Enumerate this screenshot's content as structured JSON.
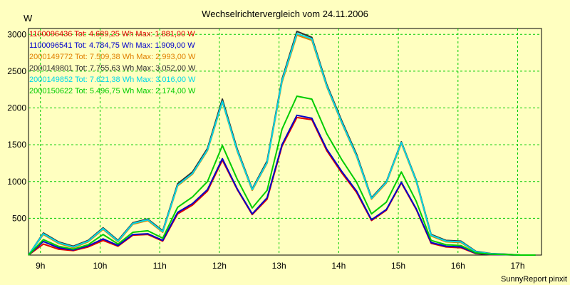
{
  "chart_data": {
    "type": "line",
    "title": "Wechselrichtervergleich vom 24.11.2006",
    "ylabel": "W",
    "xlabel": "",
    "footer": "SunnyReport pinxit",
    "background": "#ffffc0",
    "grid": true,
    "grid_color": "#00cc00",
    "legend_position": "top-left",
    "x_unit": "hour",
    "xlim": [
      8.8,
      17.4
    ],
    "ylim": [
      0,
      3080
    ],
    "x_ticks": [
      {
        "value": 9,
        "label": "9h"
      },
      {
        "value": 10,
        "label": "10h"
      },
      {
        "value": 11,
        "label": "11h"
      },
      {
        "value": 12,
        "label": "12h"
      },
      {
        "value": 13,
        "label": "13h"
      },
      {
        "value": 14,
        "label": "14h"
      },
      {
        "value": 15,
        "label": "15h"
      },
      {
        "value": 16,
        "label": "16h"
      },
      {
        "value": 17,
        "label": "17h"
      }
    ],
    "y_ticks": [
      {
        "value": 500,
        "label": "500"
      },
      {
        "value": 1000,
        "label": "1000"
      },
      {
        "value": 1500,
        "label": "1500"
      },
      {
        "value": 2000,
        "label": "2000"
      },
      {
        "value": 2500,
        "label": "2500"
      },
      {
        "value": 3000,
        "label": "3000"
      }
    ],
    "x": [
      8.8,
      9.05,
      9.3,
      9.55,
      9.8,
      10.05,
      10.3,
      10.55,
      10.8,
      11.05,
      11.3,
      11.55,
      11.8,
      12.05,
      12.3,
      12.55,
      12.8,
      13.05,
      13.3,
      13.55,
      13.8,
      14.05,
      14.3,
      14.55,
      14.8,
      15.05,
      15.3,
      15.55,
      15.8,
      16.05,
      16.3,
      16.55,
      16.8,
      17.05,
      17.3
    ],
    "series": [
      {
        "name": "1100096436 Tot: 4.689,25 Wh Max: 1.881,00 W",
        "color": "#e00000",
        "values": [
          0,
          150,
          80,
          60,
          110,
          200,
          120,
          270,
          280,
          190,
          560,
          680,
          870,
          1290,
          890,
          550,
          760,
          1480,
          1870,
          1840,
          1420,
          1120,
          850,
          470,
          610,
          980,
          620,
          160,
          110,
          100,
          20,
          5,
          5,
          0,
          0
        ]
      },
      {
        "name": "1100096541 Tot: 4.784,75 Wh Max: 1.909,00 W",
        "color": "#0000cc",
        "values": [
          0,
          185,
          100,
          70,
          125,
          220,
          130,
          280,
          290,
          200,
          580,
          700,
          890,
          1310,
          900,
          560,
          780,
          1500,
          1900,
          1860,
          1440,
          1140,
          870,
          480,
          620,
          990,
          630,
          170,
          120,
          110,
          25,
          8,
          5,
          0,
          0
        ]
      },
      {
        "name": "2000149772 Tot: 7.509,38 Wh Max: 2.993,00 W",
        "color": "#e08000",
        "values": [
          0,
          280,
          160,
          100,
          180,
          350,
          180,
          420,
          470,
          310,
          940,
          1100,
          1420,
          2080,
          1410,
          880,
          1250,
          2350,
          2990,
          2920,
          2290,
          1800,
          1340,
          760,
          980,
          1520,
          1000,
          260,
          180,
          170,
          40,
          15,
          10,
          0,
          0
        ]
      },
      {
        "name": "2000149801 Tot: 7.755,63 Wh Max: 3.052,00 W",
        "color": "#303030",
        "values": [
          0,
          300,
          180,
          120,
          200,
          370,
          200,
          440,
          490,
          330,
          970,
          1130,
          1450,
          2120,
          1440,
          900,
          1280,
          2390,
          3040,
          2960,
          2320,
          1830,
          1370,
          780,
          1000,
          1540,
          1020,
          280,
          200,
          190,
          50,
          20,
          12,
          0,
          0
        ]
      },
      {
        "name": "2000149852 Tot: 7.621,38 Wh Max: 3.016,00 W",
        "color": "#00d8e8",
        "values": [
          0,
          290,
          170,
          110,
          190,
          360,
          190,
          430,
          480,
          320,
          950,
          1110,
          1430,
          2090,
          1420,
          890,
          1260,
          2370,
          3010,
          2940,
          2300,
          1810,
          1350,
          770,
          990,
          1530,
          1010,
          270,
          190,
          180,
          45,
          18,
          10,
          0,
          0
        ]
      },
      {
        "name": "2000150622 Tot: 5.496,75 Wh Max: 2.174,00 W",
        "color": "#00cc00",
        "values": [
          0,
          210,
          120,
          80,
          140,
          280,
          150,
          310,
          330,
          230,
          650,
          790,
          1000,
          1490,
          1030,
          640,
          880,
          1710,
          2160,
          2120,
          1650,
          1300,
          990,
          560,
          720,
          1130,
          730,
          200,
          140,
          130,
          30,
          12,
          8,
          0,
          0
        ]
      }
    ]
  }
}
